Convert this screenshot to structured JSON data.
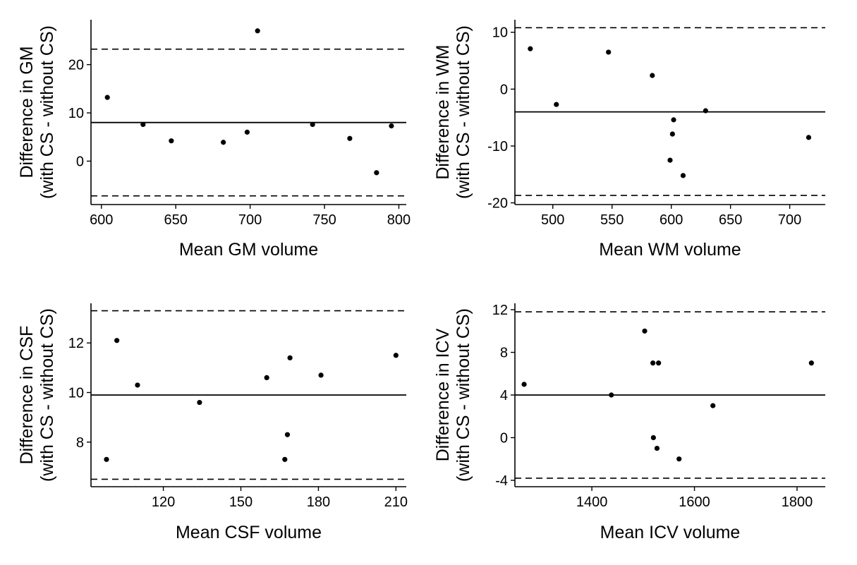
{
  "chart_data": [
    {
      "type": "scatter",
      "id": "gm",
      "xlabel": "Mean GM volume",
      "ylabel_line1": "Difference in GM",
      "ylabel_line2": "(with CS - without CS)",
      "xlim": [
        593,
        805
      ],
      "ylim": [
        -9,
        29.3
      ],
      "xticks": [
        600,
        650,
        700,
        750,
        800
      ],
      "xtick_labels": [
        "600",
        "650",
        "700",
        "750",
        "800"
      ],
      "yticks": [
        0,
        10,
        20
      ],
      "ytick_labels": [
        "0",
        "10",
        "20"
      ],
      "mean_diff": 8,
      "loa_upper": 23.2,
      "loa_lower": -7.2,
      "points": [
        {
          "x": 604,
          "y": 13.2
        },
        {
          "x": 628,
          "y": 7.6
        },
        {
          "x": 647,
          "y": 4.2
        },
        {
          "x": 682,
          "y": 3.9
        },
        {
          "x": 698,
          "y": 6.0
        },
        {
          "x": 705,
          "y": 27.0
        },
        {
          "x": 742,
          "y": 7.6
        },
        {
          "x": 767,
          "y": 4.7
        },
        {
          "x": 785,
          "y": -2.4
        },
        {
          "x": 795,
          "y": 7.3
        }
      ]
    },
    {
      "type": "scatter",
      "id": "wm",
      "xlabel": "Mean WM volume",
      "ylabel_line1": "Difference in WM",
      "ylabel_line2": "(with CS - without CS)",
      "xlim": [
        468,
        730
      ],
      "ylim": [
        -20.3,
        12.2
      ],
      "xticks": [
        500,
        550,
        600,
        650,
        700
      ],
      "xtick_labels": [
        "500",
        "550",
        "600",
        "650",
        "700"
      ],
      "yticks": [
        -20,
        -10,
        0,
        10
      ],
      "ytick_labels": [
        "-20",
        "-10",
        "0",
        "10"
      ],
      "mean_diff": -4,
      "loa_upper": 10.8,
      "loa_lower": -18.7,
      "points": [
        {
          "x": 481,
          "y": 7.1
        },
        {
          "x": 503,
          "y": -2.7
        },
        {
          "x": 547,
          "y": 6.5
        },
        {
          "x": 584,
          "y": 2.4
        },
        {
          "x": 599,
          "y": -12.5
        },
        {
          "x": 601,
          "y": -7.9
        },
        {
          "x": 602,
          "y": -5.4
        },
        {
          "x": 610,
          "y": -15.2
        },
        {
          "x": 629,
          "y": -3.8
        },
        {
          "x": 716,
          "y": -8.5
        }
      ]
    },
    {
      "type": "scatter",
      "id": "csf",
      "xlabel": "Mean CSF volume",
      "ylabel_line1": "Difference in CSF",
      "ylabel_line2": "(with CS - without CS)",
      "xlim": [
        92,
        214
      ],
      "ylim": [
        6.2,
        13.6
      ],
      "xticks": [
        120,
        150,
        180,
        210
      ],
      "xtick_labels": [
        "120",
        "150",
        "180",
        "210"
      ],
      "yticks": [
        8,
        10,
        12
      ],
      "ytick_labels": [
        "8",
        "10",
        "12"
      ],
      "mean_diff": 9.9,
      "loa_upper": 13.3,
      "loa_lower": 6.5,
      "points": [
        {
          "x": 98,
          "y": 7.3
        },
        {
          "x": 102,
          "y": 12.1
        },
        {
          "x": 110,
          "y": 10.3
        },
        {
          "x": 134,
          "y": 9.6
        },
        {
          "x": 160,
          "y": 10.6
        },
        {
          "x": 167,
          "y": 7.3
        },
        {
          "x": 168,
          "y": 8.3
        },
        {
          "x": 169,
          "y": 11.4
        },
        {
          "x": 181,
          "y": 10.7
        },
        {
          "x": 210,
          "y": 11.5
        }
      ]
    },
    {
      "type": "scatter",
      "id": "icv",
      "xlabel": "Mean ICV volume",
      "ylabel_line1": "Difference in ICV",
      "ylabel_line2": "(with CS - without CS)",
      "xlim": [
        1250,
        1855
      ],
      "ylim": [
        -4.6,
        12.6
      ],
      "xticks": [
        1400,
        1600,
        1800
      ],
      "xtick_labels": [
        "1400",
        "1600",
        "1800"
      ],
      "yticks": [
        -4,
        0,
        4,
        8,
        12
      ],
      "ytick_labels": [
        "-4",
        "0",
        "4",
        "8",
        "12"
      ],
      "mean_diff": 4,
      "loa_upper": 11.8,
      "loa_lower": -3.8,
      "points": [
        {
          "x": 1268,
          "y": 5
        },
        {
          "x": 1438,
          "y": 4
        },
        {
          "x": 1503,
          "y": 10
        },
        {
          "x": 1519,
          "y": 7
        },
        {
          "x": 1530,
          "y": 7
        },
        {
          "x": 1520,
          "y": 0
        },
        {
          "x": 1527,
          "y": -1
        },
        {
          "x": 1570,
          "y": -2
        },
        {
          "x": 1636,
          "y": 3
        },
        {
          "x": 1828,
          "y": 7
        }
      ]
    }
  ]
}
